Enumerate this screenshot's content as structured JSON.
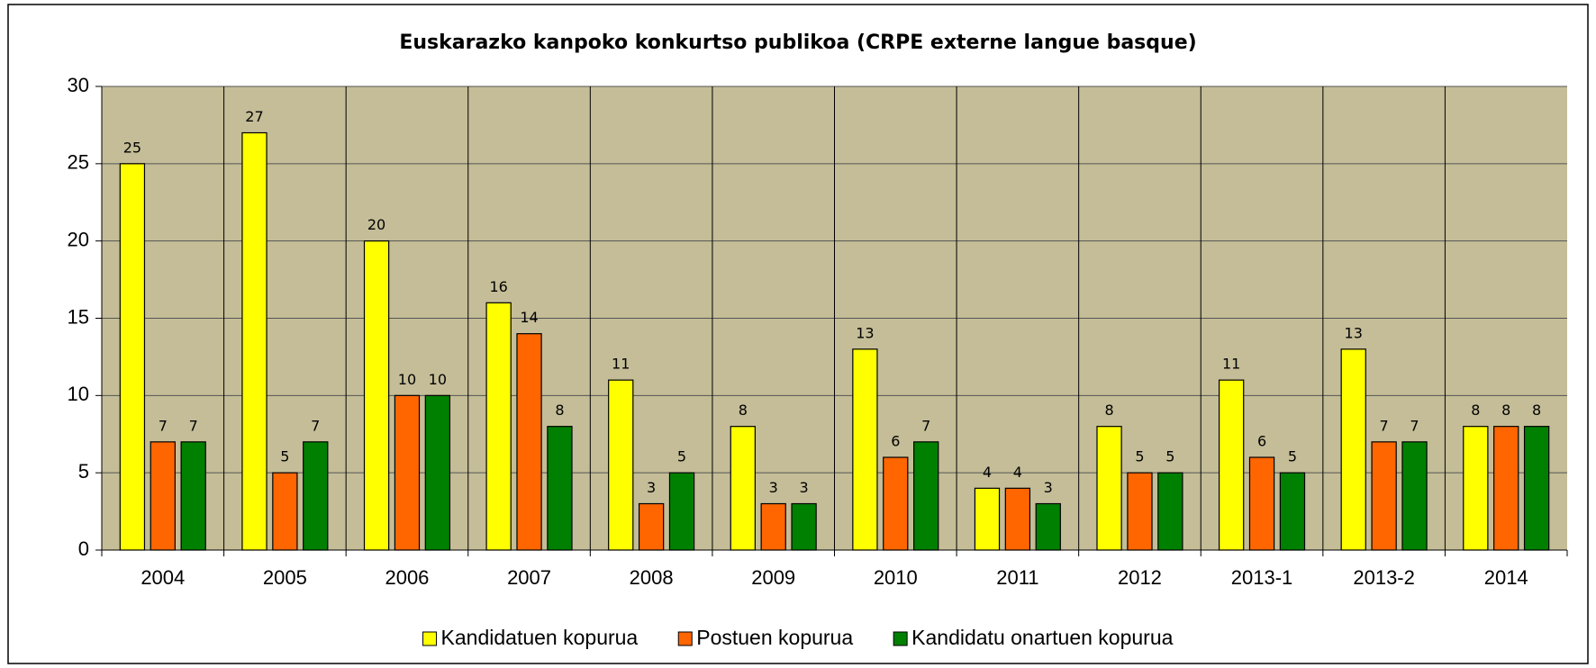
{
  "chart_data": {
    "type": "bar",
    "title": "Euskarazko  kanpoko konkurtso publikoa (CRPE externe langue basque)",
    "categories": [
      "2004",
      "2005",
      "2006",
      "2007",
      "2008",
      "2009",
      "2010",
      "2011",
      "2012",
      "2013-1",
      "2013-2",
      "2014"
    ],
    "series": [
      {
        "name": "Kandidatuen kopurua",
        "color": "#ffff00",
        "values": [
          25,
          27,
          20,
          16,
          11,
          8,
          13,
          4,
          8,
          11,
          13,
          8
        ]
      },
      {
        "name": "Postuen kopurua",
        "color": "#ff6600",
        "values": [
          7,
          5,
          10,
          14,
          3,
          3,
          6,
          4,
          5,
          6,
          7,
          8
        ]
      },
      {
        "name": "Kandidatu onartuen kopurua",
        "color": "#008000",
        "values": [
          7,
          7,
          10,
          8,
          5,
          3,
          7,
          3,
          5,
          5,
          7,
          8
        ]
      }
    ],
    "ylim": [
      0,
      30
    ],
    "yticks": [
      0,
      5,
      10,
      15,
      20,
      25,
      30
    ],
    "grid": true,
    "legend": "bottom"
  }
}
